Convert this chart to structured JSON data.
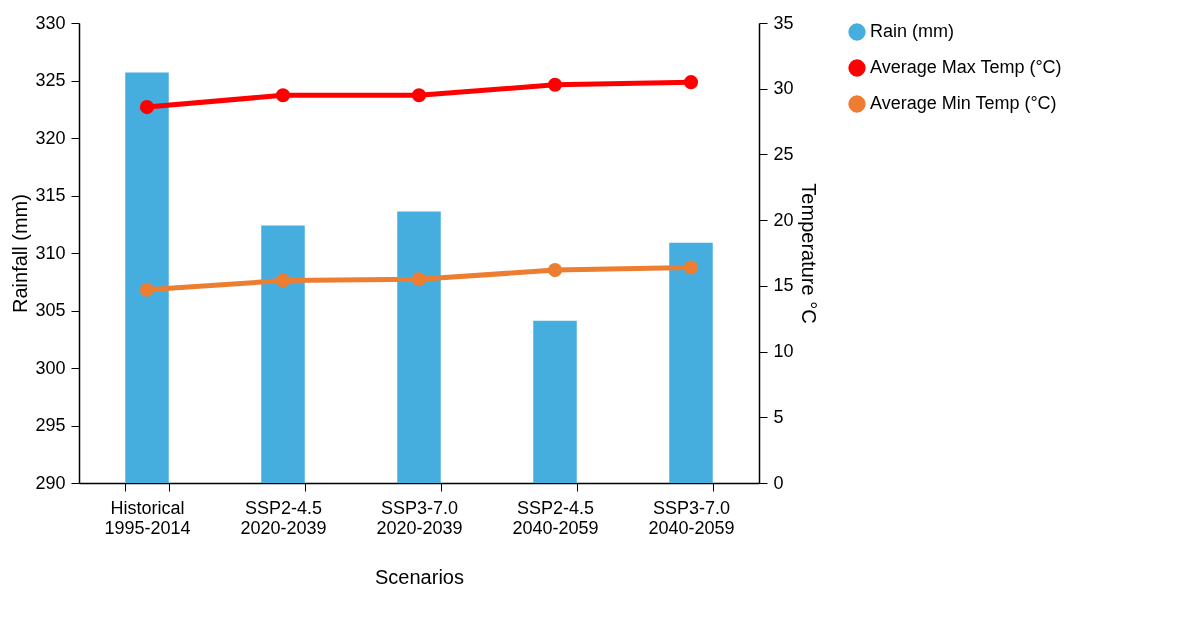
{
  "chart_data": {
    "type": "bar",
    "xlabel": "Scenarios",
    "ylabel": "Rainfall (mm)",
    "y2label": "Temperature °C",
    "categories": [
      "Historical\n1995-2014",
      "SSP2-4.5\n2020-2039",
      "SSP3-7.0\n2020-2039",
      "SSP2-4.5\n2040-2059",
      "SSP3-7.0\n2040-2059"
    ],
    "series": [
      {
        "name": "Rain (mm)",
        "color": "#45aede",
        "values": [
          325.7,
          312.4,
          313.6,
          304.1,
          310.9
        ]
      },
      {
        "name": "Average Max Temp  (°C)",
        "type": "line",
        "axis": "y2",
        "color": "#ff0000",
        "values": [
          28.6,
          29.5,
          29.5,
          30.3,
          30.5
        ]
      },
      {
        "name": "Average Min Temp (°C)",
        "type": "line",
        "axis": "y2",
        "color": "#ed7d31",
        "values": [
          14.7,
          15.4,
          15.5,
          16.2,
          16.4
        ]
      }
    ],
    "ylim": [
      290,
      330
    ],
    "yticks": [
      290,
      295,
      300,
      305,
      310,
      315,
      320,
      325,
      330
    ],
    "y2lim": [
      0,
      35
    ],
    "y2ticks": [
      0,
      5,
      10,
      15,
      20,
      25,
      30,
      35
    ],
    "grid": false,
    "legend": "top right",
    "marker": "circle",
    "line_style": "solid"
  }
}
